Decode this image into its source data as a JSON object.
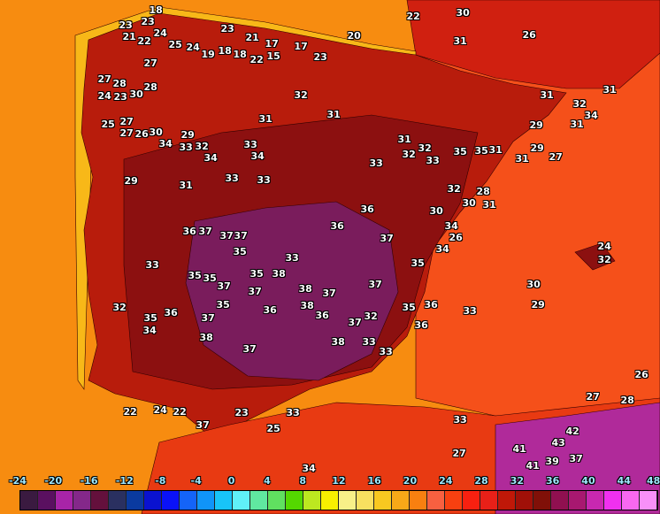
{
  "map": {
    "colors": {
      "atlantic": "#f78c10",
      "mediterranean": "#f5501a",
      "land": "#b81c0c",
      "hot": "#8c1010",
      "hottest": "#7a1c5c",
      "france": "#d02010",
      "africa": "#e83a12",
      "africa_hot": "#b02a9a",
      "coast_cool": "#f8b818"
    },
    "labels": [
      "18",
      "23",
      "23",
      "24",
      "21",
      "22",
      "23",
      "25",
      "24",
      "19",
      "18",
      "18",
      "22",
      "21",
      "17",
      "15",
      "17",
      "23",
      "27",
      "27",
      "23",
      "28",
      "30",
      "24",
      "27",
      "28",
      "25",
      "27",
      "26",
      "30",
      "29",
      "34",
      "31",
      "33",
      "32",
      "29",
      "34",
      "31",
      "32",
      "31",
      "33",
      "34",
      "33",
      "33",
      "36",
      "36",
      "37",
      "37",
      "37",
      "36",
      "35",
      "35",
      "35",
      "33",
      "33",
      "32",
      "35",
      "34",
      "36",
      "37",
      "37",
      "38",
      "36",
      "37",
      "38",
      "37",
      "38",
      "35",
      "35",
      "37",
      "36",
      "37",
      "38",
      "38",
      "37",
      "33",
      "33",
      "32",
      "35",
      "36",
      "36",
      "37",
      "35",
      "34",
      "34",
      "33",
      "32",
      "31",
      "31",
      "30",
      "31",
      "29",
      "28",
      "27",
      "29",
      "31",
      "32",
      "31",
      "26",
      "32",
      "30",
      "30",
      "29",
      "33",
      "33",
      "27",
      "28",
      "22",
      "24",
      "22",
      "37",
      "33",
      "23",
      "25",
      "34",
      "41",
      "43",
      "42",
      "41",
      "39",
      "37",
      "27",
      "26",
      "20",
      "22",
      "31",
      "26",
      "30",
      "35",
      "34",
      "32",
      "24",
      "31",
      "31",
      "32",
      "33",
      "35"
    ]
  },
  "legend": {
    "ticks": [
      "-24",
      "-20",
      "-16",
      "-12",
      "-8",
      "-4",
      "0",
      "4",
      "8",
      "12",
      "16",
      "20",
      "24",
      "28",
      "32",
      "36",
      "40",
      "44",
      "48"
    ],
    "colors": [
      "#3a1a40",
      "#5a1060",
      "#a824a8",
      "#84288a",
      "#64103c",
      "#2a3060",
      "#0a3aa0",
      "#0a12d0",
      "#0a12f8",
      "#1464f8",
      "#1094f8",
      "#18c4f8",
      "#60f0f8",
      "#60e8a0",
      "#60e060",
      "#54d800",
      "#bce820",
      "#f8f000",
      "#f8f088",
      "#f8e060",
      "#f8c820",
      "#f8a818",
      "#f88010",
      "#f86040",
      "#f84010",
      "#f82010",
      "#e82018",
      "#c01808",
      "#a01008",
      "#801008",
      "#901050",
      "#a81870",
      "#c828b0",
      "#f030f0",
      "#f868f0",
      "#f890f8"
    ]
  }
}
